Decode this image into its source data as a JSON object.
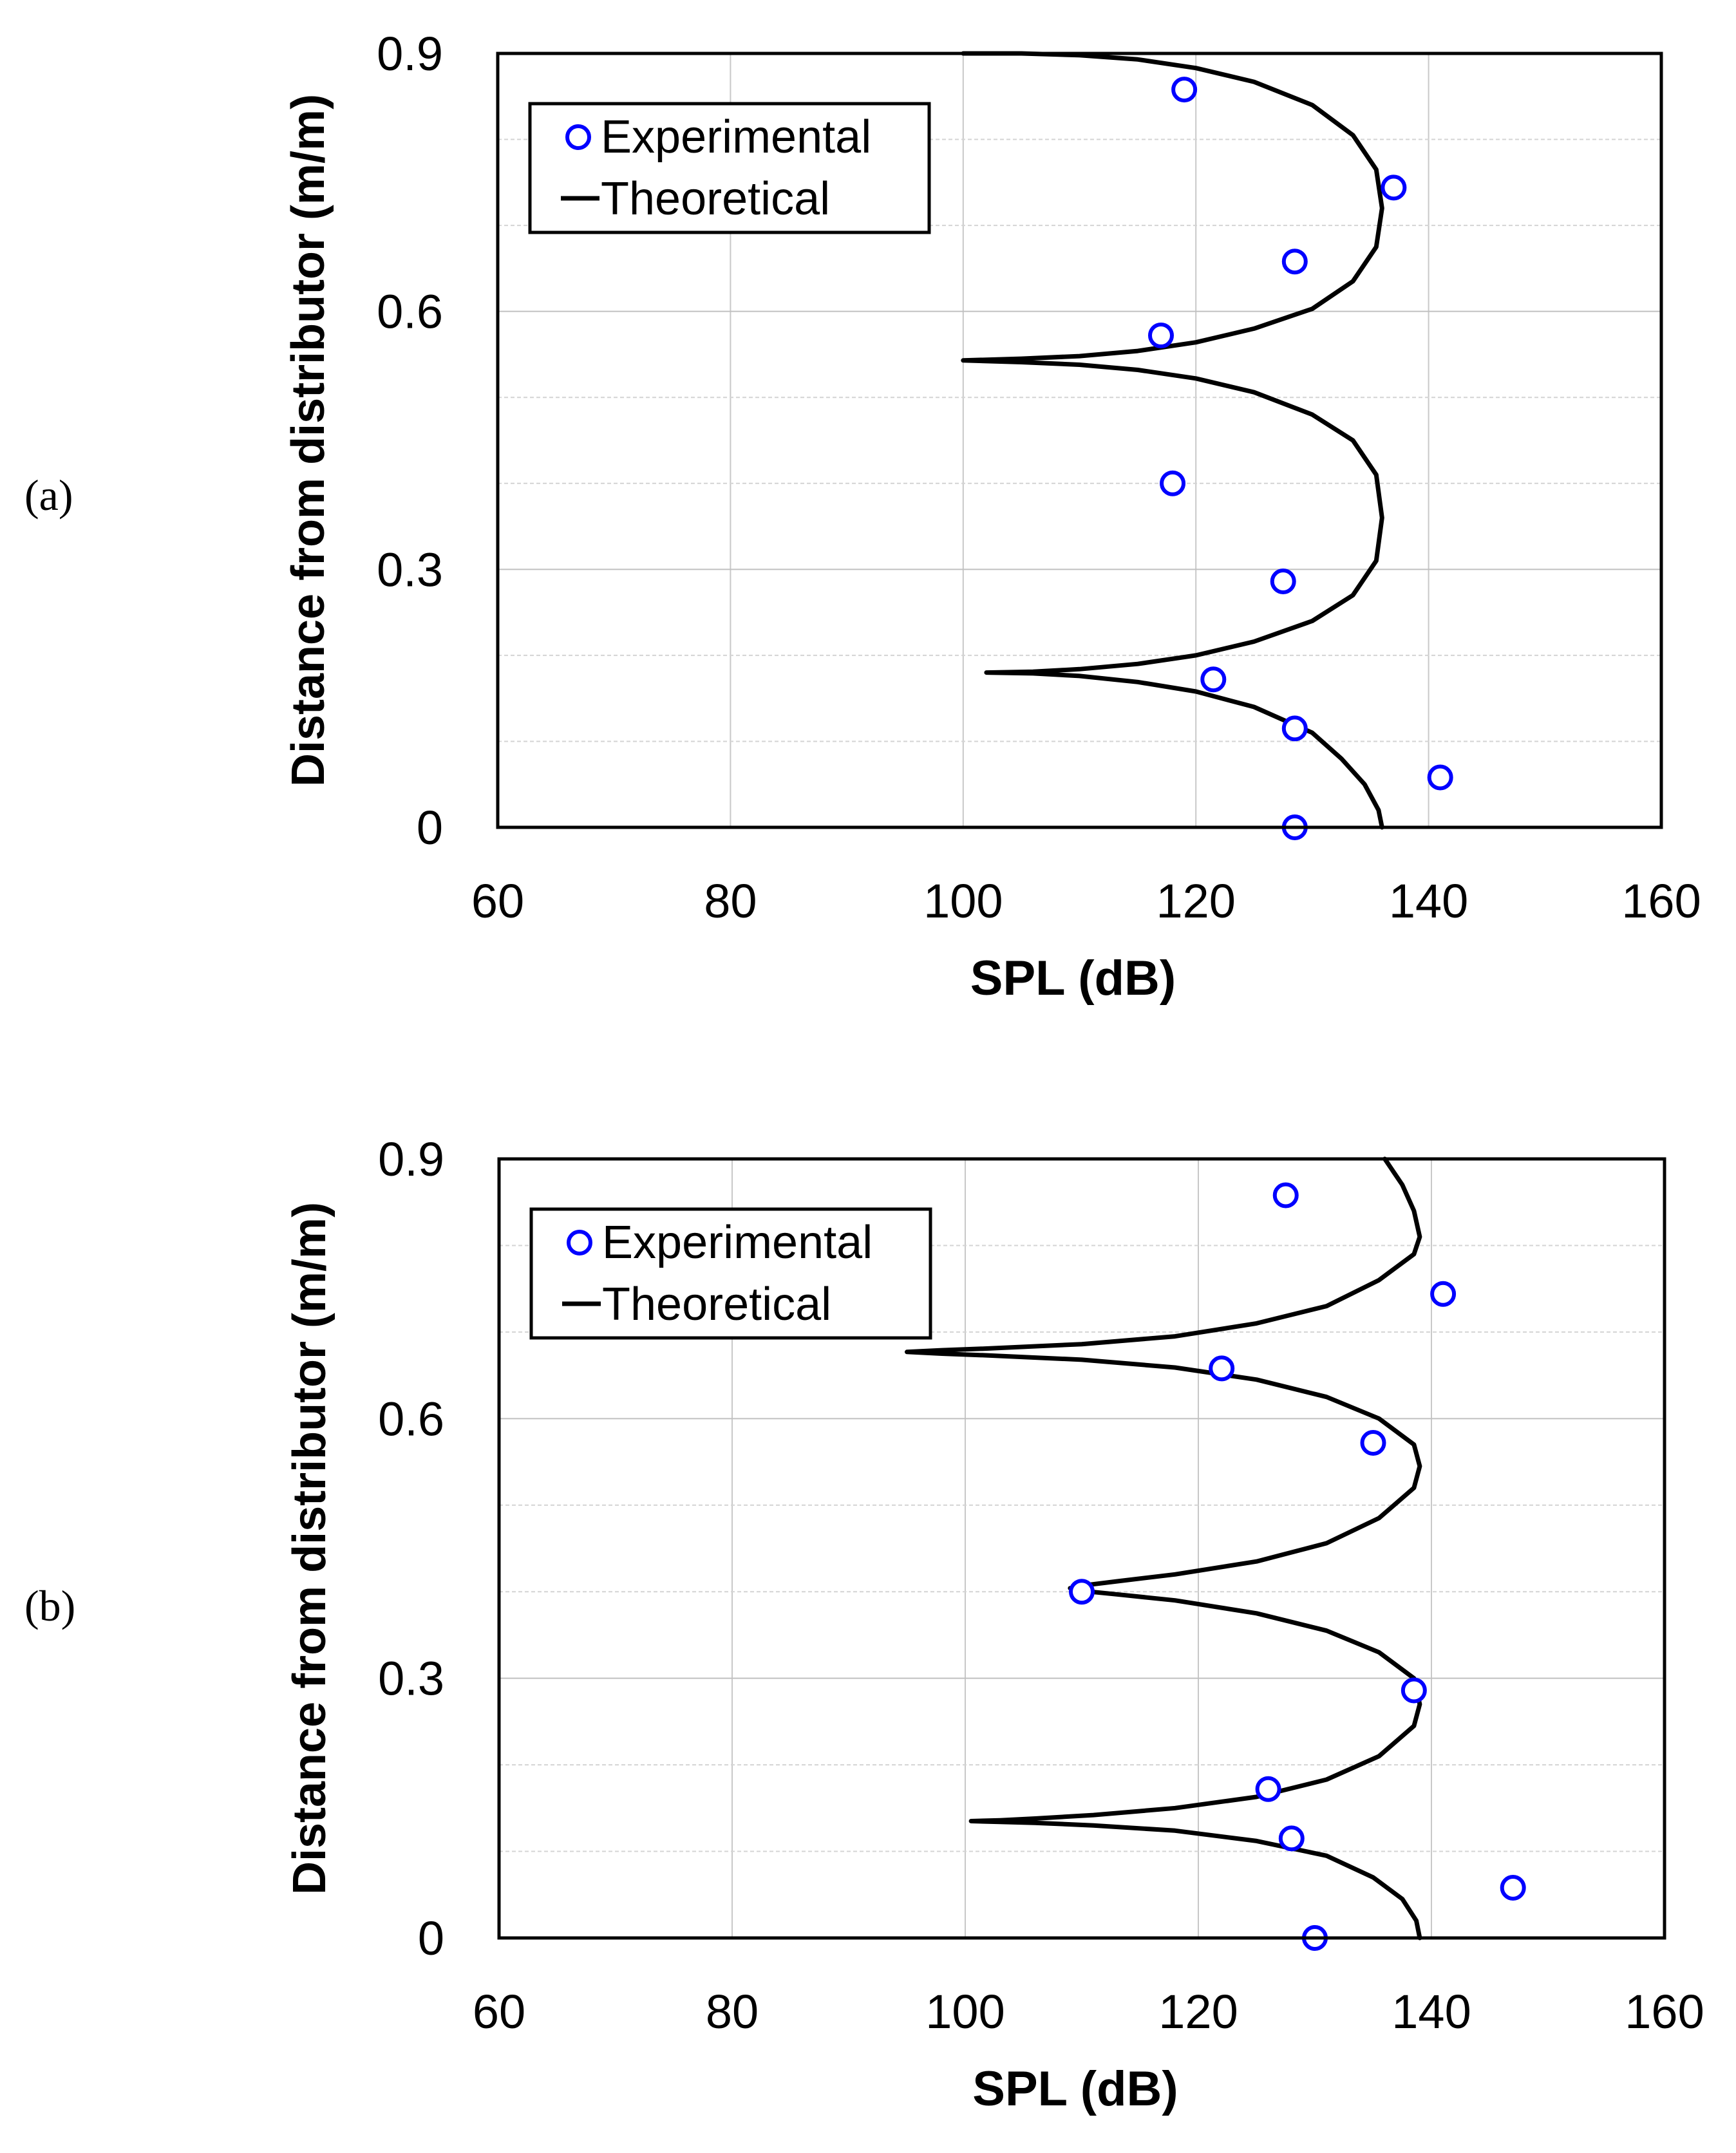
{
  "chart_data": [
    {
      "panel": "(a)",
      "type": "scatter",
      "title": "",
      "xlabel": "SPL (dB)",
      "ylabel": "Distance from distributor (m/m)",
      "xlim": [
        60,
        160
      ],
      "ylim": [
        0,
        0.9
      ],
      "xticks": [
        "60",
        "80",
        "100",
        "120",
        "140",
        "160"
      ],
      "yticks": [
        "0",
        "0.3",
        "0.6",
        "0.9"
      ],
      "grid": true,
      "legend": {
        "position": "top-left",
        "entries": [
          "Experimental",
          "Theoretical"
        ]
      },
      "series": [
        {
          "name": "Experimental",
          "kind": "markers",
          "color": "#0000ff",
          "x": [
            128.5,
            141,
            128.5,
            121.5,
            127.5,
            118,
            117,
            128.5,
            137,
            119
          ],
          "y": [
            0,
            0.058,
            0.115,
            0.172,
            0.286,
            0.4,
            0.572,
            0.658,
            0.744,
            0.858
          ]
        },
        {
          "name": "Theoretical",
          "kind": "line",
          "color": "#000000",
          "x": [
            136,
            135.7,
            134.5,
            132.5,
            130,
            125,
            120,
            115,
            110,
            106,
            102,
            106,
            110,
            115,
            120,
            125,
            130,
            133.5,
            135.5,
            136,
            135.5,
            133.5,
            130,
            125,
            120,
            115,
            110,
            105,
            100,
            105,
            110,
            115,
            120,
            125,
            130,
            133.5,
            135.5,
            136,
            135.5,
            133.5,
            130,
            125,
            120,
            115,
            110,
            105,
            100
          ],
          "y": [
            0,
            0.02,
            0.05,
            0.08,
            0.11,
            0.14,
            0.158,
            0.169,
            0.176,
            0.179,
            0.18,
            0.181,
            0.184,
            0.19,
            0.2,
            0.216,
            0.24,
            0.27,
            0.31,
            0.36,
            0.41,
            0.45,
            0.48,
            0.506,
            0.522,
            0.532,
            0.538,
            0.541,
            0.543,
            0.545,
            0.548,
            0.554,
            0.564,
            0.58,
            0.603,
            0.635,
            0.675,
            0.72,
            0.765,
            0.805,
            0.84,
            0.867,
            0.883,
            0.893,
            0.898,
            0.9,
            0.9
          ]
        }
      ]
    },
    {
      "panel": "(b)",
      "type": "scatter",
      "title": "",
      "xlabel": "SPL (dB)",
      "ylabel": "Distance from distributor (m/m)",
      "xlim": [
        60,
        160
      ],
      "ylim": [
        0,
        0.9
      ],
      "xticks": [
        "60",
        "80",
        "100",
        "120",
        "140",
        "160"
      ],
      "yticks": [
        "0",
        "0.3",
        "0.6",
        "0.9"
      ],
      "grid": true,
      "legend": {
        "position": "top-left",
        "entries": [
          "Experimental",
          "Theoretical"
        ]
      },
      "series": [
        {
          "name": "Experimental",
          "kind": "markers",
          "color": "#0000ff",
          "x": [
            130,
            147,
            128,
            126,
            138.5,
            110,
            135,
            122,
            141,
            127.5
          ],
          "y": [
            0,
            0.058,
            0.115,
            0.172,
            0.286,
            0.4,
            0.572,
            0.658,
            0.744,
            0.858
          ]
        },
        {
          "name": "Theoretical",
          "kind": "line",
          "color": "#000000",
          "x": [
            139,
            138.7,
            137.5,
            135,
            131,
            125,
            118,
            111,
            106,
            103,
            100.5,
            103,
            106,
            111,
            118,
            125,
            131,
            135.5,
            138.5,
            139,
            138.5,
            135.5,
            131,
            125,
            118,
            113,
            110,
            109,
            110,
            113,
            118,
            125,
            131,
            135.5,
            138.5,
            139,
            138.5,
            135.5,
            131,
            125,
            118,
            110,
            102,
            98,
            95,
            98,
            102,
            110,
            118,
            125,
            131,
            135.5,
            138.5,
            139,
            138.5,
            137.5,
            136
          ],
          "y": [
            0,
            0.02,
            0.045,
            0.07,
            0.095,
            0.112,
            0.124,
            0.13,
            0.133,
            0.134,
            0.135,
            0.136,
            0.138,
            0.142,
            0.15,
            0.163,
            0.183,
            0.21,
            0.245,
            0.27,
            0.3,
            0.33,
            0.355,
            0.375,
            0.39,
            0.397,
            0.401,
            0.404,
            0.407,
            0.412,
            0.42,
            0.435,
            0.456,
            0.485,
            0.52,
            0.545,
            0.57,
            0.6,
            0.625,
            0.645,
            0.659,
            0.668,
            0.673,
            0.675,
            0.677,
            0.679,
            0.681,
            0.686,
            0.695,
            0.71,
            0.73,
            0.76,
            0.79,
            0.81,
            0.84,
            0.87,
            0.9
          ]
        }
      ]
    }
  ]
}
